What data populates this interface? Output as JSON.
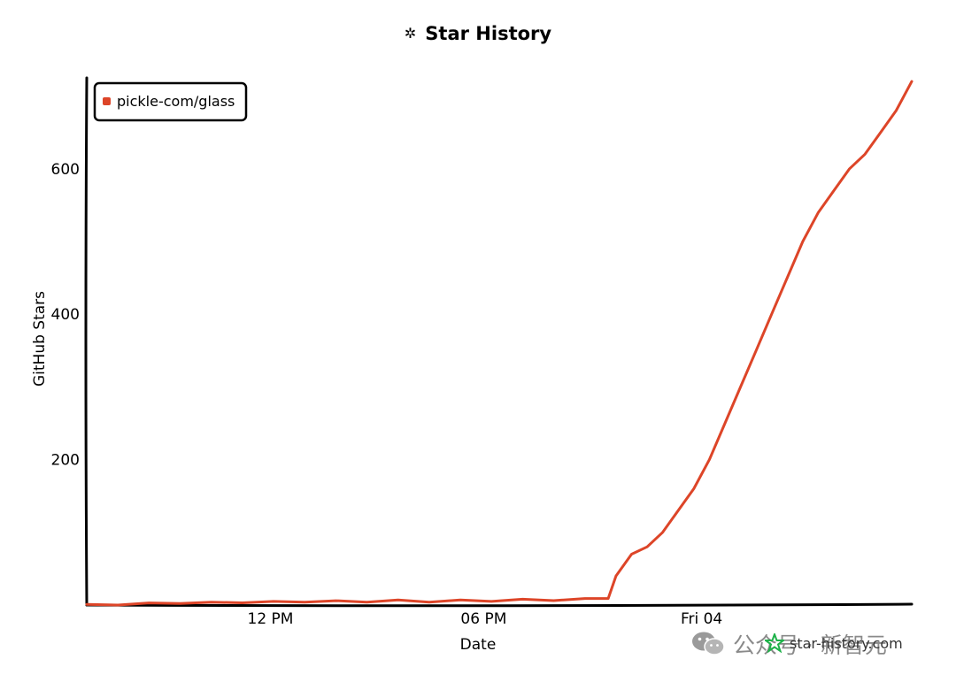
{
  "chart_data": {
    "type": "line",
    "title": "Star History",
    "xlabel": "Date",
    "ylabel": "GitHub Stars",
    "x_ticks": [
      "12 PM",
      "06 PM",
      "Fri 04"
    ],
    "y_ticks": [
      200,
      400,
      600
    ],
    "ylim": [
      0,
      725
    ],
    "legend_position": "top-left",
    "grid": false,
    "series": [
      {
        "name": "pickle-com/glass",
        "color": "#dd4528",
        "x_hours": [
          0,
          2,
          4,
          6,
          8,
          10,
          12,
          14,
          16,
          18,
          20,
          22,
          24,
          26,
          28,
          30,
          32,
          33.5,
          34,
          35,
          36,
          37,
          38,
          39,
          40,
          41,
          42,
          43,
          44,
          45,
          46,
          47,
          48,
          49,
          50,
          51,
          52,
          53
        ],
        "values": [
          0,
          1,
          2,
          3,
          3,
          4,
          4,
          5,
          5,
          5,
          6,
          5,
          6,
          6,
          7,
          7,
          8,
          10,
          40,
          70,
          80,
          100,
          130,
          160,
          200,
          250,
          300,
          350,
          400,
          450,
          500,
          540,
          570,
          600,
          620,
          650,
          680,
          720
        ]
      }
    ]
  },
  "watermark": {
    "text": "公众号 · 新智元"
  },
  "credit": {
    "text": "star-history.com"
  }
}
